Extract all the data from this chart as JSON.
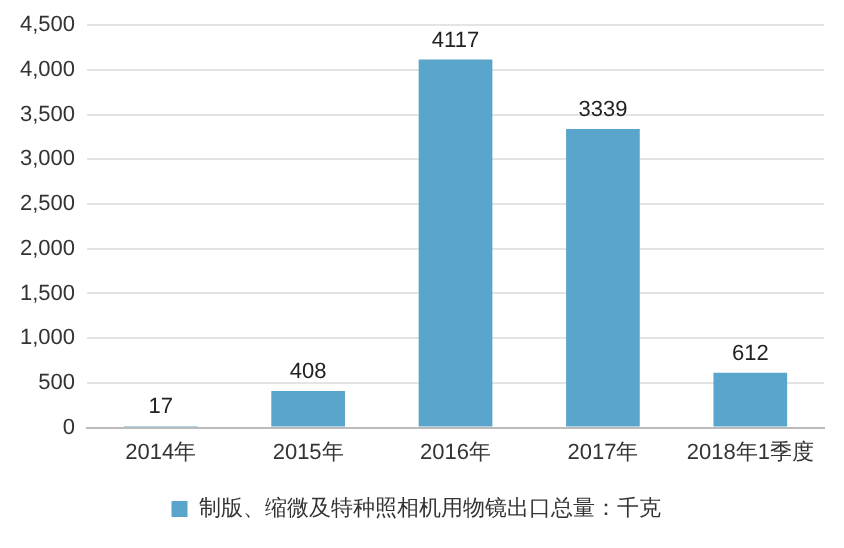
{
  "chart_data": {
    "type": "bar",
    "categories": [
      "2014年",
      "2015年",
      "2016年",
      "2017年",
      "2018年1季度"
    ],
    "series": [
      {
        "name": "制版、缩微及特种照相机用物镜出口总量：千克",
        "color": "#5aa5cc",
        "values": [
          17,
          408,
          4117,
          3339,
          612
        ]
      }
    ],
    "ylim": [
      0,
      4500
    ],
    "yticks": [
      {
        "value": 0,
        "label": "0"
      },
      {
        "value": 500,
        "label": "500"
      },
      {
        "value": 1000,
        "label": "1,000"
      },
      {
        "value": 1500,
        "label": "1,500"
      },
      {
        "value": 2000,
        "label": "2,000"
      },
      {
        "value": 2500,
        "label": "2,500"
      },
      {
        "value": 3000,
        "label": "3,000"
      },
      {
        "value": 3500,
        "label": "3,500"
      },
      {
        "value": 4000,
        "label": "4,000"
      },
      {
        "value": 4500,
        "label": "4,500"
      }
    ],
    "grid": "y",
    "legend": "bottom",
    "data_labels": true
  }
}
